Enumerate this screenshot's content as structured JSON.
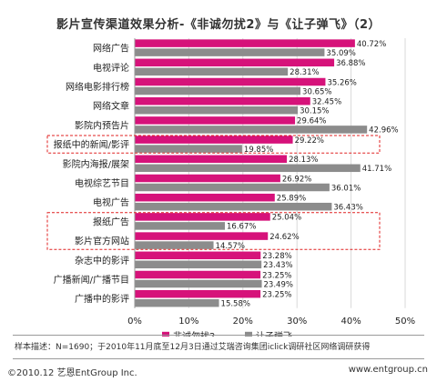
{
  "chart_data": {
    "type": "bar",
    "orientation": "horizontal",
    "title": "影片宣传渠道效果分析-《非诚勿扰2》与《让子弹飞》（2）",
    "categories": [
      "网络广告",
      "电视评论",
      "网络电影排行榜",
      "网络文章",
      "影院内预告片",
      "报纸中的新闻/影评",
      "影院内海报/展架",
      "电视综艺节目",
      "电视广告",
      "报纸广告",
      "影片官方网站",
      "杂志中的影评",
      "广播新闻/广播节目",
      "广播中的影评"
    ],
    "series": [
      {
        "name": "非诚勿扰2",
        "color": "#d6127a",
        "values": [
          40.72,
          36.88,
          35.26,
          32.45,
          29.64,
          29.22,
          28.13,
          26.92,
          25.89,
          25.04,
          24.62,
          23.28,
          23.25,
          23.25
        ],
        "labels": [
          "40.72%",
          "36.88%",
          "35.26%",
          "32.45%",
          "29.64%",
          "29.22%",
          "28.13%",
          "26.92%",
          "25.89%",
          "25.04%",
          "24.62%",
          "23.28%",
          "23.25%",
          "23.25%"
        ]
      },
      {
        "name": "让子弹飞",
        "color": "#8c8c8c",
        "values": [
          35.09,
          28.31,
          30.65,
          30.15,
          42.96,
          19.85,
          41.71,
          36.01,
          36.43,
          16.67,
          14.57,
          23.43,
          23.49,
          15.58
        ],
        "labels": [
          "35.09%",
          "28.31%",
          "30.65%",
          "30.15%",
          "42.96%",
          "19.85%",
          "41.71%",
          "36.01%",
          "36.43%",
          "16.67%",
          "14.57%",
          "23.43%",
          "23.49%",
          "15.58%"
        ]
      }
    ],
    "xlim": [
      0,
      50
    ],
    "x_ticks": [
      "0%",
      "10%",
      "20%",
      "30%",
      "40%",
      "50%"
    ],
    "grid": true,
    "legend_position": "bottom-center",
    "highlighted_groups": [
      [
        5
      ],
      [
        9,
        10
      ]
    ]
  },
  "footer": {
    "note": "样本描述：N=1690；于2010年11月底至12月3日通过艾瑞咨询集团iclick调研社区网络调研获得",
    "copyright": "©2010.12 艺恩EntGroup Inc.",
    "site": "www.entgroup.cn"
  }
}
